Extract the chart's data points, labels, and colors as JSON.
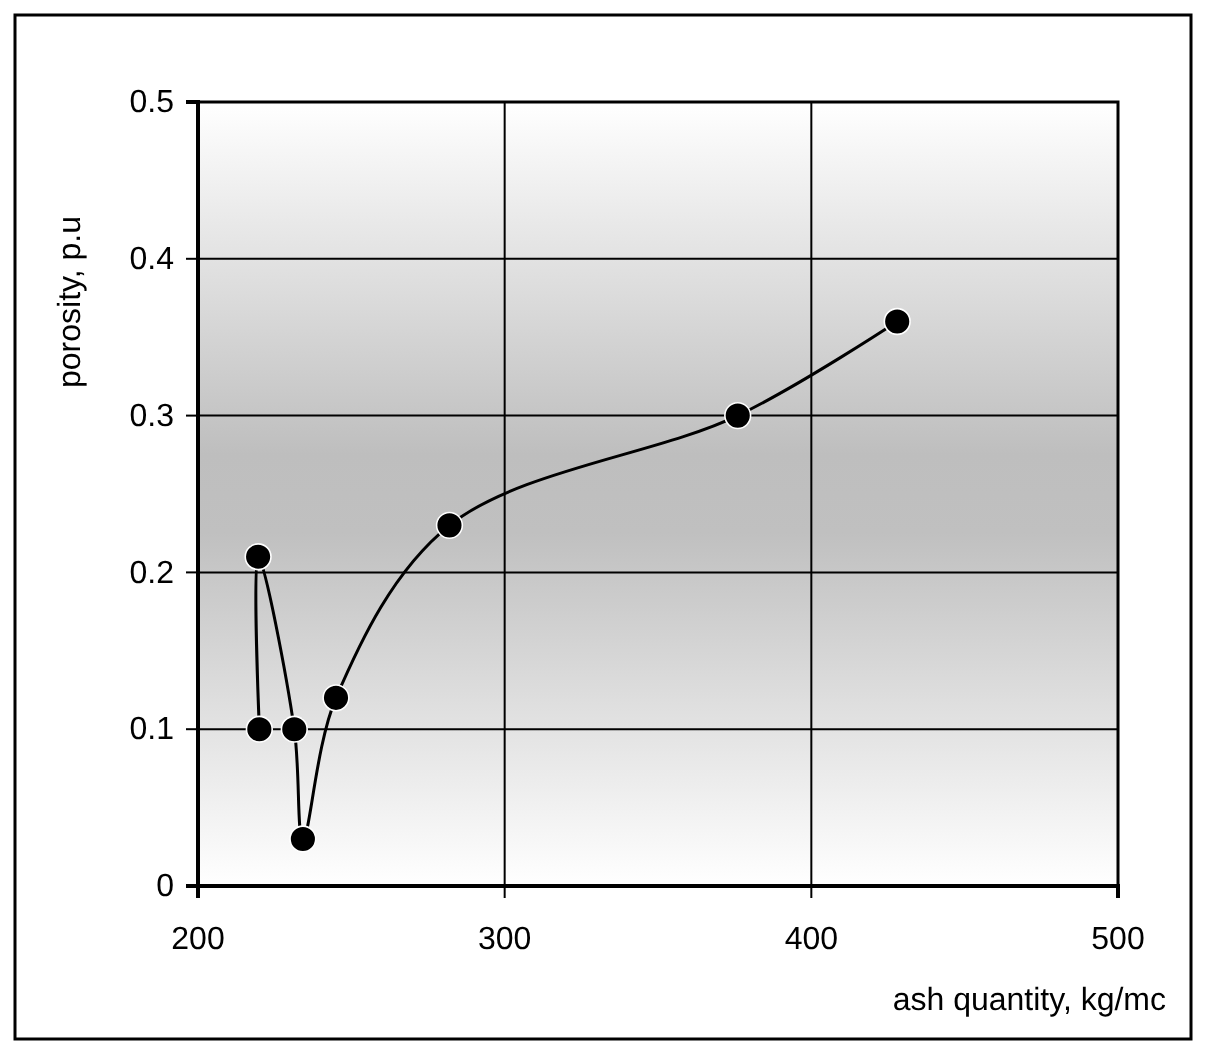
{
  "chart_data": {
    "type": "line",
    "xlabel": "ash quantity, kg/mc",
    "ylabel": "porosity, p.u",
    "x": [
      220,
      219.6,
      231.4,
      234.2,
      245,
      282,
      376,
      428
    ],
    "series": [
      {
        "color": "#000000",
        "values": [
          0.1,
          0.21,
          0.1,
          0.03,
          0.12,
          0.23,
          0.3,
          0.36
        ]
      }
    ],
    "xlim": [
      200,
      500
    ],
    "xticks": [
      200,
      300,
      400,
      500
    ],
    "ylim": [
      0,
      0.5
    ],
    "yticks": [
      0,
      0.1,
      0.2,
      0.3,
      0.4,
      0.5
    ],
    "grid": true,
    "marker": "circle",
    "line_style": "solid"
  }
}
